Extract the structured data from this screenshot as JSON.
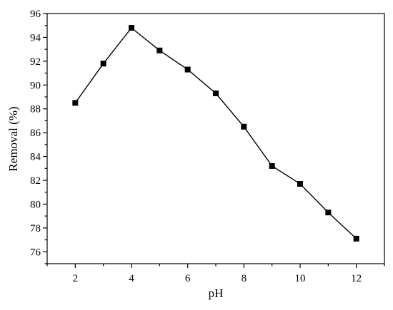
{
  "chart_data": {
    "type": "line",
    "title": "",
    "xlabel": "pH",
    "ylabel": "Removal (%)",
    "xlim": [
      1,
      13
    ],
    "ylim": [
      75,
      96
    ],
    "xticks": [
      2,
      4,
      6,
      8,
      10,
      12
    ],
    "yticks": [
      76,
      78,
      80,
      82,
      84,
      86,
      88,
      90,
      92,
      94,
      96
    ],
    "grid": false,
    "legend": "none",
    "series": [
      {
        "marker": "square",
        "color": "#000000",
        "x": [
          2,
          3,
          4,
          5,
          6,
          7,
          8,
          9,
          10,
          11,
          12
        ],
        "y": [
          88.5,
          91.8,
          94.8,
          92.9,
          91.3,
          89.3,
          86.5,
          83.2,
          81.7,
          79.3,
          77.1
        ]
      }
    ]
  }
}
